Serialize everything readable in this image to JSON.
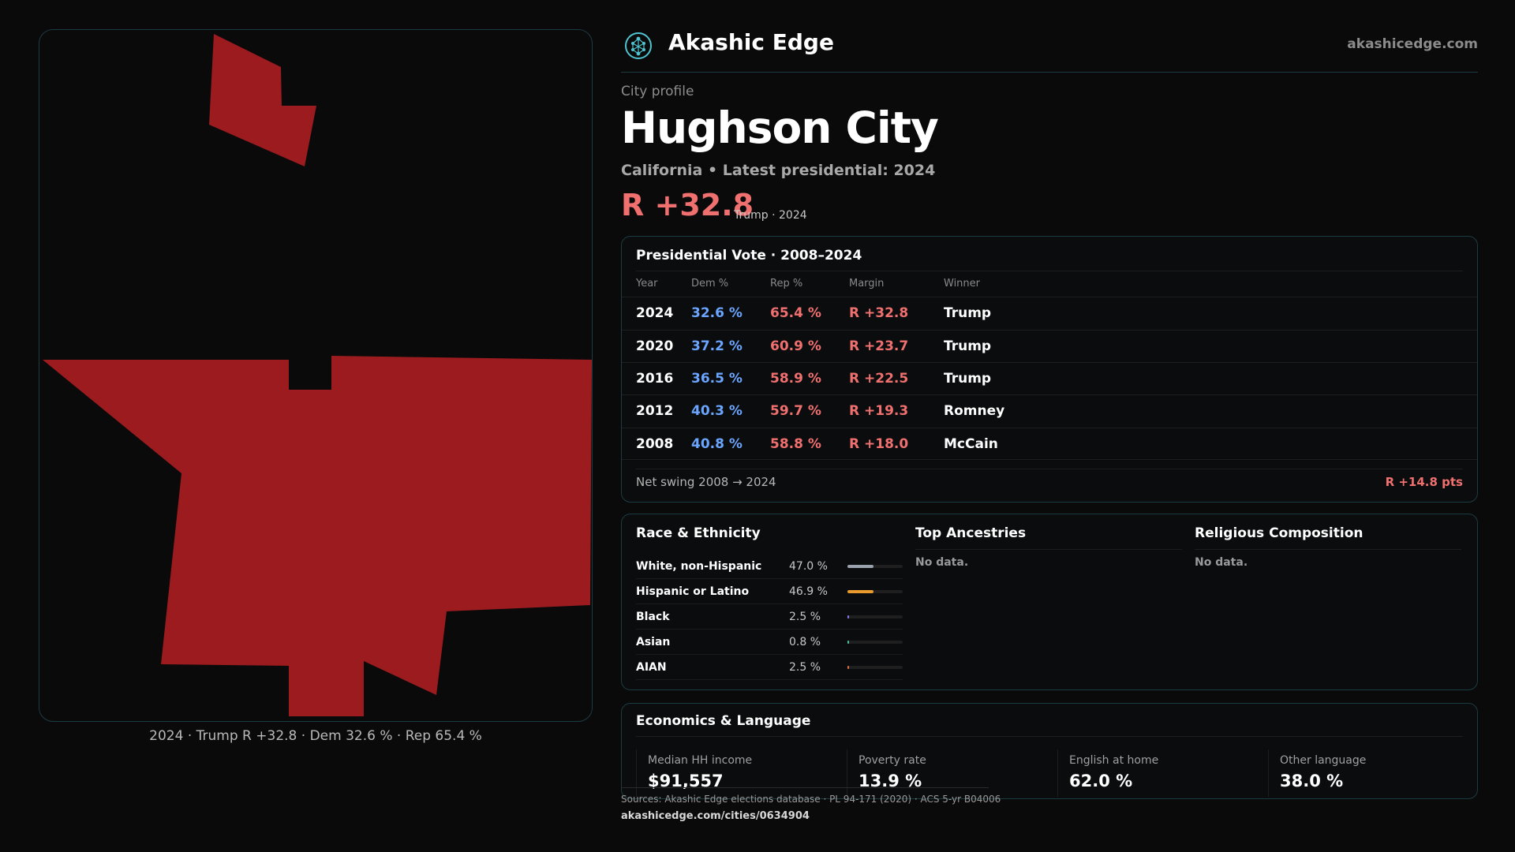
{
  "map": {
    "caption": "2024 · Trump R +32.8 · Dem 32.6 % · Rep 65.4 %",
    "fill_color": "#9b1b1e"
  },
  "header": {
    "brand": "Akashic Edge",
    "site": "akashicedge.com",
    "logo_icon": "tree-of-life-icon",
    "accent_color": "#4fc3d0"
  },
  "profile": {
    "eyebrow": "City profile",
    "city_name": "Hughson City",
    "subtitle": "California • Latest presidential: 2024",
    "margin": "R +32.8",
    "margin_note": "Trump · 2024",
    "rep_color": "#f07070",
    "dem_color": "#6aa5ff"
  },
  "presidential": {
    "title": "Presidential Vote · 2008–2024",
    "columns": [
      "Year",
      "Dem %",
      "Rep %",
      "Margin",
      "Winner"
    ],
    "rows": [
      {
        "year": "2024",
        "dem": "32.6 %",
        "rep": "65.4 %",
        "margin": "R +32.8",
        "winner": "Trump"
      },
      {
        "year": "2020",
        "dem": "37.2 %",
        "rep": "60.9 %",
        "margin": "R +23.7",
        "winner": "Trump"
      },
      {
        "year": "2016",
        "dem": "36.5 %",
        "rep": "58.9 %",
        "margin": "R +22.5",
        "winner": "Trump"
      },
      {
        "year": "2012",
        "dem": "40.3 %",
        "rep": "59.7 %",
        "margin": "R +19.3",
        "winner": "Romney"
      },
      {
        "year": "2008",
        "dem": "40.8 %",
        "rep": "58.8 %",
        "margin": "R +18.0",
        "winner": "McCain"
      }
    ],
    "swing_label": "Net swing 2008 → 2024",
    "swing_value": "R +14.8 pts"
  },
  "race": {
    "title": "Race & Ethnicity",
    "rows": [
      {
        "label": "White, non-Hispanic",
        "pct": "47.0 %",
        "share": 0.47,
        "color": "#9aa3ad"
      },
      {
        "label": "Hispanic or Latino",
        "pct": "46.9 %",
        "share": 0.469,
        "color": "#e89a2c"
      },
      {
        "label": "Black",
        "pct": "2.5 %",
        "share": 0.025,
        "color": "#8a7cf0"
      },
      {
        "label": "Asian",
        "pct": "0.8 %",
        "share": 0.008,
        "color": "#4fc3a0"
      },
      {
        "label": "AIAN",
        "pct": "2.5 %",
        "share": 0.025,
        "color": "#e0704a"
      }
    ]
  },
  "ancestries": {
    "title": "Top Ancestries",
    "empty": "No data."
  },
  "religion": {
    "title": "Religious Composition",
    "empty": "No data."
  },
  "economics": {
    "title": "Economics & Language",
    "stats": [
      {
        "label": "Median HH income",
        "value": "$91,557"
      },
      {
        "label": "Poverty rate",
        "value": "13.9 %"
      },
      {
        "label": "English at home",
        "value": "62.0 %"
      },
      {
        "label": "Other language",
        "value": "38.0 %"
      }
    ]
  },
  "footer": {
    "sources": "Sources: Akashic Edge elections database · PL 94-171 (2020) · ACS 5-yr B04006",
    "permalink": "akashicedge.com/cities/0634904"
  }
}
